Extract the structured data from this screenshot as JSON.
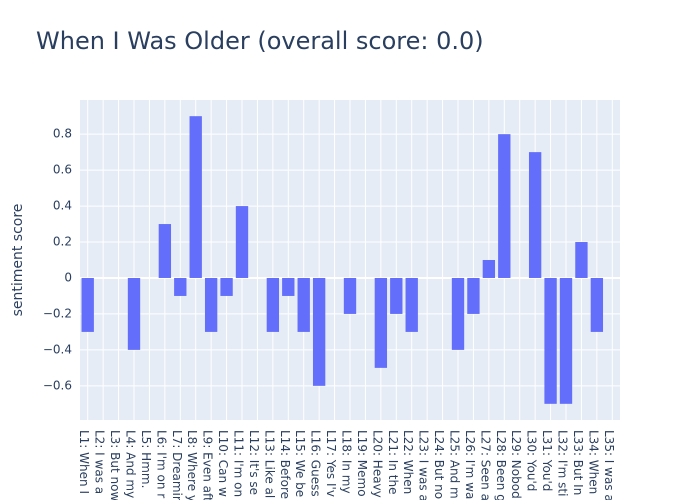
{
  "chart_data": {
    "type": "bar",
    "title": "When I Was Older (overall score: 0.0)",
    "y_label": "sentiment score",
    "categories": [
      "L1: When I",
      "L2: I was a",
      "L3: But now",
      "L4: And my",
      "L5: Hmm.",
      "L6: I'm on r",
      "L7: Dreamir",
      "L8: Where y",
      "L9: Even aft",
      "L10: Can w",
      "L11: I'm on",
      "L12: It's se",
      "L13: Like al",
      "L14: Before",
      "L15: We be",
      "L16: Guess",
      "L17: Yes I'v",
      "L18: In my",
      "L19: Memo",
      "L20: Heavy",
      "L21: In the",
      "L22: When",
      "L23: I was a",
      "L24: But no",
      "L25: And m",
      "L26: I'm wa",
      "L27: Seen a",
      "L28: Been g",
      "L29: Nobod",
      "L30: You'd",
      "L31: You'd",
      "L32: I'm sti",
      "L33: But In",
      "L34: When",
      "L35: I was a"
    ],
    "values": [
      -0.3,
      0,
      0,
      -0.4,
      0,
      0.3,
      -0.1,
      0.9,
      -0.3,
      -0.1,
      0.4,
      0,
      -0.3,
      -0.1,
      -0.3,
      -0.6,
      0,
      -0.2,
      0,
      -0.5,
      -0.2,
      -0.3,
      0,
      0,
      -0.4,
      -0.2,
      0.1,
      0.8,
      0,
      0.7,
      -0.7,
      -0.7,
      0.2,
      -0.3,
      0
    ],
    "color": "#636efa",
    "ylim": [
      -0.79,
      0.99
    ],
    "yticks": [
      {
        "value": -0.6,
        "label": "−0.6"
      },
      {
        "value": -0.4,
        "label": "−0.4"
      },
      {
        "value": -0.2,
        "label": "−0.2"
      },
      0,
      0.2,
      0.4,
      0.6,
      0.8
    ],
    "grid": true
  }
}
